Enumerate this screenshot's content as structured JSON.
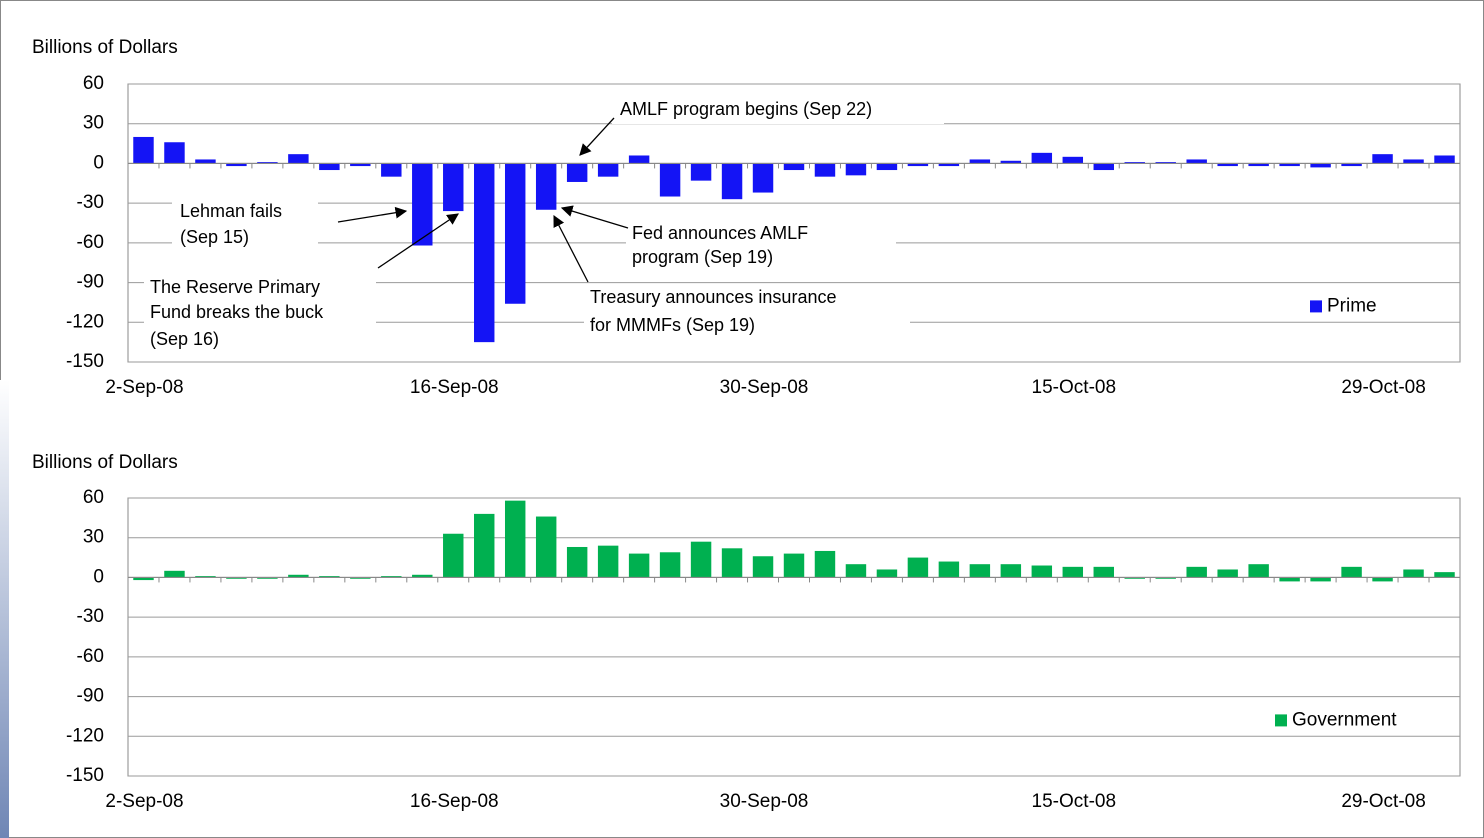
{
  "chart_data": [
    {
      "type": "bar",
      "y_label": "Billions of Dollars",
      "categories": [
        "2-Sep-08",
        null,
        null,
        null,
        null,
        null,
        null,
        null,
        null,
        null,
        "16-Sep-08",
        null,
        null,
        null,
        null,
        null,
        null,
        null,
        null,
        null,
        "30-Sep-08",
        null,
        null,
        null,
        null,
        null,
        null,
        null,
        null,
        null,
        "15-Oct-08",
        null,
        null,
        null,
        null,
        null,
        null,
        null,
        null,
        null,
        "29-Oct-08",
        null,
        null
      ],
      "series": [
        {
          "name": "Prime",
          "color": "#1414f5",
          "values": [
            20,
            16,
            3,
            -2,
            1,
            7,
            -5,
            -2,
            -10,
            -62,
            -36,
            -135,
            -106,
            -35,
            -14,
            -10,
            6,
            -25,
            -13,
            -27,
            -22,
            -5,
            -10,
            -9,
            -5,
            -2,
            -2,
            3,
            2,
            8,
            5,
            -5,
            1,
            1,
            3,
            -2,
            -2,
            -2,
            -3,
            -2,
            7,
            3,
            6
          ]
        }
      ],
      "ylim": [
        -150,
        60
      ],
      "yticks": [
        -150,
        -120,
        -90,
        -60,
        -30,
        0,
        30,
        60
      ],
      "grid": true,
      "legend": "lower right",
      "annotations": [
        {
          "lines": [
            "AMLF program begins (Sep 22)"
          ]
        },
        {
          "lines": [
            "Lehman fails",
            "(Sep 15)"
          ]
        },
        {
          "lines": [
            "The Reserve Primary",
            "Fund breaks the buck",
            "(Sep 16)"
          ]
        },
        {
          "lines": [
            "Fed announces AMLF",
            "program (Sep 19)"
          ]
        },
        {
          "lines": [
            "Treasury announces insurance",
            "for MMMFs (Sep 19)"
          ]
        }
      ]
    },
    {
      "type": "bar",
      "y_label": "Billions of Dollars",
      "categories": [
        "2-Sep-08",
        null,
        null,
        null,
        null,
        null,
        null,
        null,
        null,
        null,
        "16-Sep-08",
        null,
        null,
        null,
        null,
        null,
        null,
        null,
        null,
        null,
        "30-Sep-08",
        null,
        null,
        null,
        null,
        null,
        null,
        null,
        null,
        null,
        "15-Oct-08",
        null,
        null,
        null,
        null,
        null,
        null,
        null,
        null,
        null,
        "29-Oct-08",
        null,
        null
      ],
      "series": [
        {
          "name": "Government",
          "color": "#00b050",
          "values": [
            -2,
            5,
            1,
            -1,
            -1,
            2,
            1,
            -1,
            1,
            2,
            33,
            48,
            58,
            46,
            23,
            24,
            18,
            19,
            27,
            22,
            16,
            18,
            20,
            10,
            6,
            15,
            12,
            10,
            10,
            9,
            8,
            8,
            -1,
            -1,
            8,
            6,
            10,
            -3,
            -3,
            8,
            -3,
            6,
            4
          ]
        }
      ],
      "ylim": [
        -150,
        60
      ],
      "yticks": [
        -150,
        -120,
        -90,
        -60,
        -30,
        0,
        30,
        60
      ],
      "grid": true,
      "legend": "lower right"
    }
  ]
}
